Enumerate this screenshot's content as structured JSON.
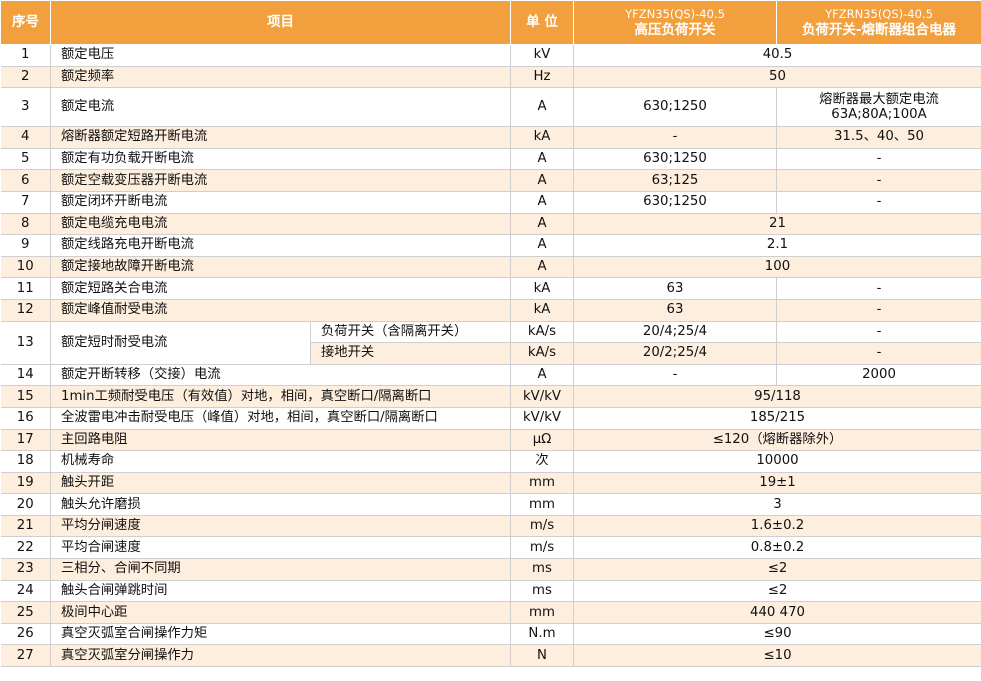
{
  "header": {
    "no": "序号",
    "item": "项目",
    "unit": "单 位",
    "col1_model": "YFZN35(QS)-40.5",
    "col1_name": "高压负荷开关",
    "col2_model": "YFZRN35(QS)-40.5",
    "col2_name": "负荷开关-熔断器组合电器"
  },
  "rows": [
    {
      "no": "1",
      "item": "额定电压",
      "unit": "kV",
      "merged": "40.5"
    },
    {
      "no": "2",
      "item": "额定频率",
      "unit": "Hz",
      "merged": "50"
    },
    {
      "no": "3",
      "item": "额定电流",
      "unit": "A",
      "v1": "630;1250",
      "v2": "熔断器最大额定电流 63A;80A;100A"
    },
    {
      "no": "4",
      "item": "熔断器额定短路开断电流",
      "unit": "kA",
      "v1": "-",
      "v2": "31.5、40、50"
    },
    {
      "no": "5",
      "item": "额定有功负载开断电流",
      "unit": "A",
      "v1": "630;1250",
      "v2": "-"
    },
    {
      "no": "6",
      "item": "额定空载变压器开断电流",
      "unit": "A",
      "v1": "63;125",
      "v2": "-"
    },
    {
      "no": "7",
      "item": "额定闭环开断电流",
      "unit": "A",
      "v1": "630;1250",
      "v2": "-"
    },
    {
      "no": "8",
      "item": "额定电缆充电电流",
      "unit": "A",
      "merged": "21"
    },
    {
      "no": "9",
      "item": "额定线路充电开断电流",
      "unit": "A",
      "merged": "2.1"
    },
    {
      "no": "10",
      "item": "额定接地故障开断电流",
      "unit": "A",
      "merged": "100"
    },
    {
      "no": "11",
      "item": "额定短路关合电流",
      "unit": "kA",
      "v1": "63",
      "v2": "-"
    },
    {
      "no": "12",
      "item": "额定峰值耐受电流",
      "unit": "kA",
      "v1": "63",
      "v2": "-"
    },
    {
      "no": "13",
      "item": "额定短时耐受电流",
      "sub1": "负荷开关（含隔离开关）",
      "unit1": "kA/s",
      "v1a": "20/4;25/4",
      "v2a": "-",
      "sub2": "接地开关",
      "unit2": "kA/s",
      "v1b": "20/2;25/4",
      "v2b": "-"
    },
    {
      "no": "14",
      "item": "额定开断转移（交接）电流",
      "unit": "A",
      "v1": "-",
      "v2": "2000"
    },
    {
      "no": "15",
      "item": "1min工频耐受电压（有效值）对地，相间，真空断口/隔离断口",
      "unit": "kV/kV",
      "merged": "95/118"
    },
    {
      "no": "16",
      "item": "全波雷电冲击耐受电压（峰值）对地，相间，真空断口/隔离断口",
      "unit": "kV/kV",
      "merged": "185/215"
    },
    {
      "no": "17",
      "item": "主回路电阻",
      "unit": "μΩ",
      "merged": "≤120（熔断器除外）"
    },
    {
      "no": "18",
      "item": "机械寿命",
      "unit": "次",
      "merged": "10000"
    },
    {
      "no": "19",
      "item": "触头开距",
      "unit": "mm",
      "merged": "19±1"
    },
    {
      "no": "20",
      "item": "触头允许磨损",
      "unit": "mm",
      "merged": "3"
    },
    {
      "no": "21",
      "item": "平均分闸速度",
      "unit": "m/s",
      "merged": "1.6±0.2"
    },
    {
      "no": "22",
      "item": "平均合闸速度",
      "unit": "m/s",
      "merged": "0.8±0.2"
    },
    {
      "no": "23",
      "item": "三相分、合闸不同期",
      "unit": "ms",
      "merged": "≤2"
    },
    {
      "no": "24",
      "item": "触头合闸弹跳时间",
      "unit": "ms",
      "merged": "≤2"
    },
    {
      "no": "25",
      "item": "极间中心距",
      "unit": "mm",
      "merged": "440  470"
    },
    {
      "no": "26",
      "item": "真空灭弧室合闸操作力矩",
      "unit": "N.m",
      "merged": "≤90"
    },
    {
      "no": "27",
      "item": "真空灭弧室分闸操作力",
      "unit": "N",
      "merged": "≤10"
    }
  ],
  "colors": {
    "header_bg": "#f2a03d",
    "stripe_bg": "#fdeedd",
    "border": "#cfcfcf"
  }
}
